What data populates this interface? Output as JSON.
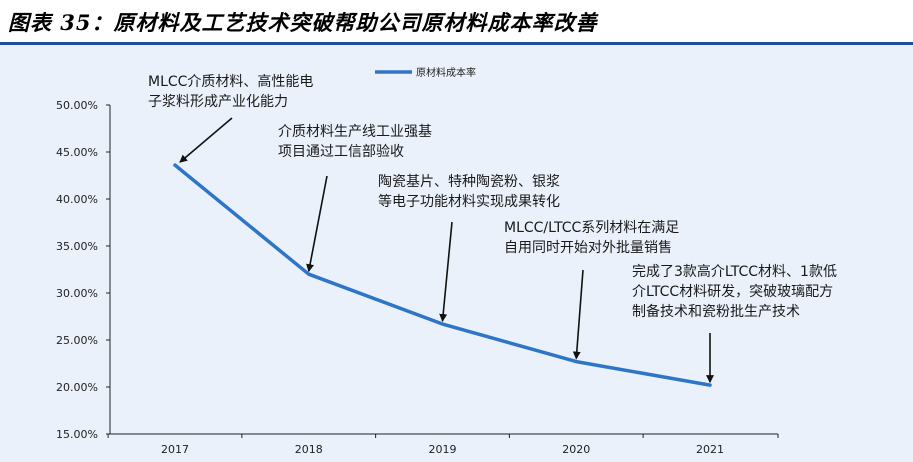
{
  "header": {
    "title": "图表 35：原材料及工艺技术突破帮助公司原材料成本率改善"
  },
  "chart_data": {
    "type": "line",
    "title": "",
    "xlabel": "",
    "ylabel": "",
    "categories": [
      "2017",
      "2018",
      "2019",
      "2020",
      "2021"
    ],
    "series": [
      {
        "name": "原材料成本率",
        "values": [
          43.6,
          32.0,
          26.7,
          22.7,
          20.2
        ],
        "color": "#2e75c8"
      }
    ],
    "ylim": [
      15,
      50
    ],
    "yticks": [
      "15.00%",
      "20.00%",
      "25.00%",
      "30.00%",
      "35.00%",
      "40.00%",
      "45.00%",
      "50.00%"
    ],
    "legend_position": "top-center",
    "grid": false,
    "annotations": [
      {
        "lines": [
          "MLCC介质材料、高性能电",
          "子浆料形成产业化能力"
        ],
        "target": "2017"
      },
      {
        "lines": [
          "介质材料生产线工业强基",
          "项目通过工信部验收"
        ],
        "target": "2018"
      },
      {
        "lines": [
          "陶瓷基片、特种陶瓷粉、银浆",
          "等电子功能材料实现成果转化"
        ],
        "target": "2019"
      },
      {
        "lines": [
          "MLCC/LTCC系列材料在满足",
          "自用同时开始对外批量销售"
        ],
        "target": "2020"
      },
      {
        "lines": [
          "完成了3款高介LTCC材料、1款低",
          "介LTCC材料研发，突破玻璃配方",
          "制备技术和瓷粉批生产技术"
        ],
        "target": "2021"
      }
    ]
  }
}
